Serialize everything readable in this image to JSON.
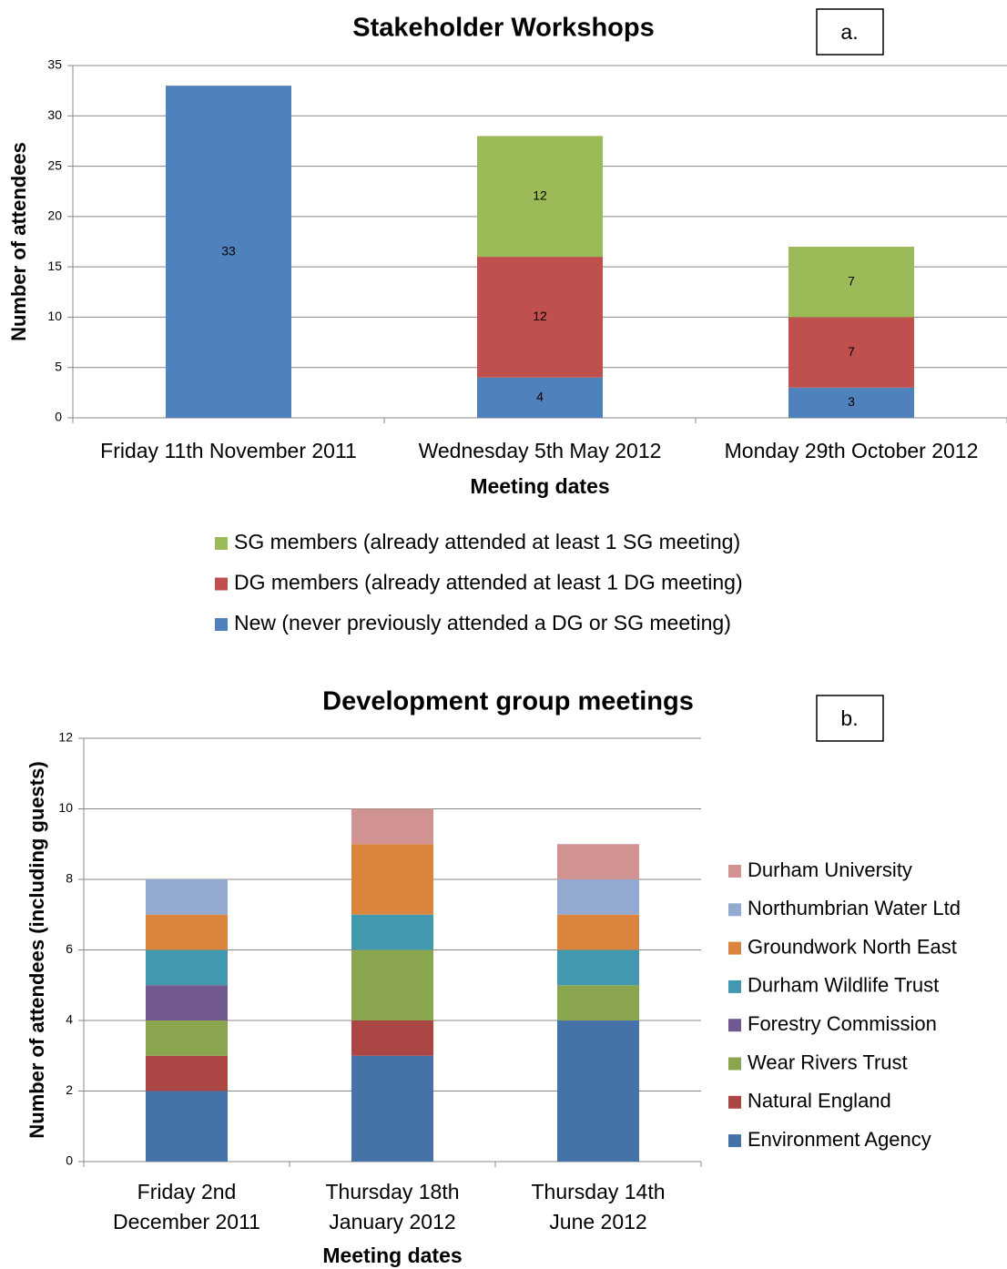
{
  "chart_data": [
    {
      "type": "stacked_bar",
      "title": "Stakeholder Workshops",
      "annotation": "a.",
      "x_label": "Meeting dates",
      "y_label": "Number of attendees",
      "categories": [
        "Friday 11th November 2011",
        "Wednesday 5th May 2012",
        "Monday 29th October 2012"
      ],
      "series": [
        {
          "name": "New (never previously attended a DG or SG meeting)",
          "color": "#4f81bd",
          "values": [
            33,
            4,
            3
          ]
        },
        {
          "name": "DG members (already attended at least 1 DG meeting)",
          "color": "#c0504d",
          "values": [
            0,
            12,
            7
          ]
        },
        {
          "name": "SG members (already attended at least 1 SG meeting)",
          "color": "#9bbb59",
          "values": [
            0,
            12,
            7
          ]
        }
      ],
      "ylim": [
        0,
        35
      ],
      "yticks": [
        0,
        5,
        10,
        15,
        20,
        25,
        30,
        35
      ],
      "grid": true,
      "data_labels": true,
      "legend": "bottom"
    },
    {
      "type": "stacked_bar",
      "title": "Development group meetings",
      "annotation": "b.",
      "x_label": "Meeting dates",
      "y_label": "Number of attendees (including guests)",
      "categories": [
        "Friday 2nd December 2011",
        "Thursday 18th January 2012",
        "Thursday 14th June 2012"
      ],
      "series": [
        {
          "name": "Environment Agency",
          "color": "#4572a7",
          "values": [
            2,
            3,
            4
          ]
        },
        {
          "name": "Natural England",
          "color": "#aa4643",
          "values": [
            1,
            1,
            0
          ]
        },
        {
          "name": "Wear Rivers Trust",
          "color": "#89a54e",
          "values": [
            1,
            2,
            1
          ]
        },
        {
          "name": "Forestry Commission",
          "color": "#71588f",
          "values": [
            1,
            0,
            0
          ]
        },
        {
          "name": "Durham Wildlife Trust",
          "color": "#4198af",
          "values": [
            1,
            1,
            1
          ]
        },
        {
          "name": "Groundwork North East",
          "color": "#db843d",
          "values": [
            1,
            2,
            1
          ]
        },
        {
          "name": "Northumbrian Water Ltd",
          "color": "#93a9cf",
          "values": [
            1,
            0,
            1
          ]
        },
        {
          "name": "Durham University",
          "color": "#d19392",
          "values": [
            0,
            1,
            1
          ]
        }
      ],
      "ylim": [
        0,
        12
      ],
      "yticks": [
        0,
        2,
        4,
        6,
        8,
        10,
        12
      ],
      "grid": true,
      "data_labels": false,
      "legend": "right"
    }
  ]
}
